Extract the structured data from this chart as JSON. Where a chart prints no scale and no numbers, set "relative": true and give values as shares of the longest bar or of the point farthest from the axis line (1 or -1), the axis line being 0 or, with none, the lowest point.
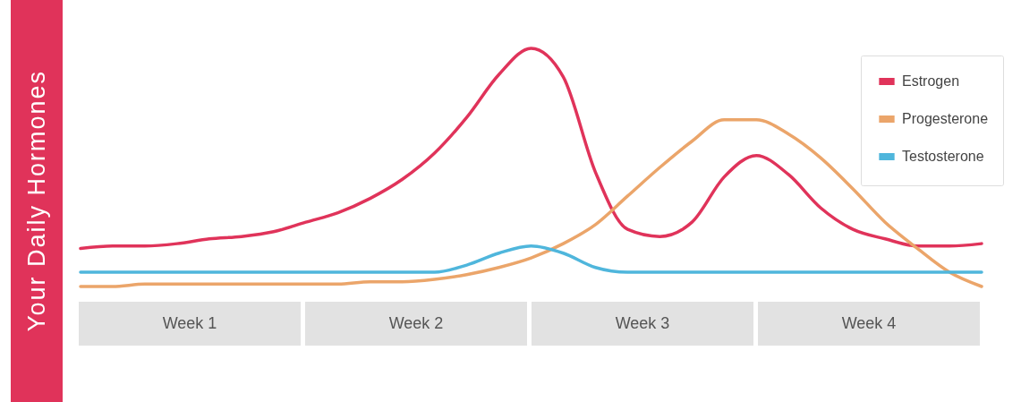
{
  "chart_data": {
    "type": "line",
    "title": "Your Daily Hormones",
    "relative": true,
    "legend": "top right",
    "marker": "none",
    "line_style": "solid",
    "categories": [
      null,
      null,
      null,
      null,
      null,
      null,
      null,
      null,
      null,
      null,
      null,
      null,
      null,
      null,
      null,
      null,
      null,
      null,
      null,
      null,
      null,
      null,
      null,
      null,
      null,
      null,
      null,
      null,
      null
    ],
    "series": [
      {
        "name": "Estrogen",
        "color": "#e0335a",
        "values": [
          0.16,
          0.17,
          0.17,
          0.18,
          0.2,
          0.21,
          0.23,
          0.27,
          0.31,
          0.37,
          0.45,
          0.56,
          0.71,
          0.89,
          1,
          0.88,
          0.48,
          0.24,
          0.21,
          0.27,
          0.46,
          0.55,
          0.47,
          0.33,
          0.24,
          0.2,
          0.17,
          0.17,
          0.18
        ]
      },
      {
        "name": "Progesterone",
        "color": "#eba56a",
        "values": [
          0,
          0,
          0.01,
          0.01,
          0.01,
          0.01,
          0.01,
          0.01,
          0.01,
          0.02,
          0.02,
          0.03,
          0.05,
          0.08,
          0.12,
          0.18,
          0.26,
          0.38,
          0.5,
          0.61,
          0.7,
          0.7,
          0.64,
          0.54,
          0.41,
          0.27,
          0.16,
          0.06,
          0
        ]
      },
      {
        "name": "Testosterone",
        "color": "#4fb6dc",
        "values": [
          0.06,
          0.06,
          0.06,
          0.06,
          0.06,
          0.06,
          0.06,
          0.06,
          0.06,
          0.06,
          0.06,
          0.06,
          0.09,
          0.14,
          0.17,
          0.14,
          0.08,
          0.06,
          0.06,
          0.06,
          0.06,
          0.06,
          0.06,
          0.06,
          0.06,
          0.06,
          0.06,
          0.06,
          0.06
        ]
      }
    ],
    "annotations": [
      "Week 1",
      "Week 2",
      "Week 3",
      "Week 4"
    ]
  }
}
